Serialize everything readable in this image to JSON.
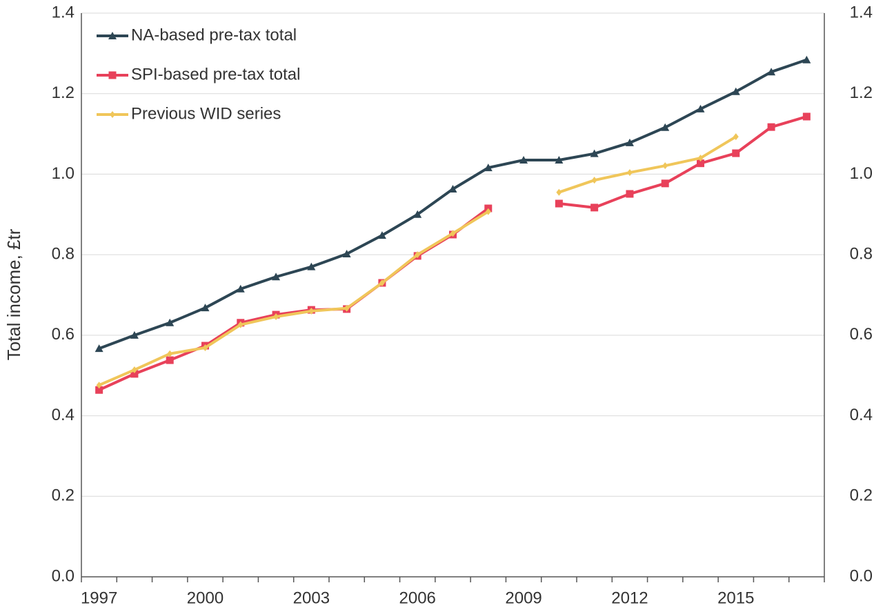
{
  "chart_data": {
    "type": "line",
    "y_label": "Total income, £tr",
    "categories": [
      "1997",
      null,
      null,
      "2000",
      null,
      null,
      "2003",
      null,
      null,
      "2006",
      null,
      null,
      "2009",
      null,
      null,
      "2012",
      null,
      null,
      "2015",
      null,
      null
    ],
    "series": [
      {
        "name": "NA-based pre-tax total",
        "color": "#2d4654",
        "marker": "triangle",
        "values": [
          0.567,
          0.6,
          0.631,
          0.668,
          0.715,
          0.745,
          0.77,
          0.802,
          0.848,
          0.9,
          0.963,
          1.016,
          1.035,
          1.035,
          1.051,
          1.078,
          1.116,
          1.162,
          1.205,
          1.254,
          1.284
        ]
      },
      {
        "name": "SPI-based pre-tax total",
        "color": "#e8415a",
        "marker": "square",
        "values": [
          0.464,
          0.504,
          0.538,
          0.574,
          0.631,
          0.651,
          0.663,
          0.665,
          0.73,
          0.797,
          0.85,
          0.915,
          null,
          0.927,
          0.917,
          0.951,
          0.977,
          1.027,
          1.052,
          1.117,
          1.143
        ]
      },
      {
        "name": "Previous WID series",
        "color": "#f0c65a",
        "marker": "diamond",
        "values": [
          0.476,
          0.514,
          0.554,
          0.569,
          0.626,
          0.646,
          0.66,
          0.667,
          0.73,
          0.8,
          0.853,
          0.907,
          null,
          0.955,
          0.985,
          1.004,
          1.021,
          1.04,
          1.093,
          null,
          null
        ]
      }
    ],
    "ylim": [
      0,
      1.4
    ],
    "yticks": [
      {
        "value": 0,
        "label": "0.0"
      },
      0.2,
      0.4,
      0.6,
      0.8,
      {
        "value": 1,
        "label": "1.0"
      },
      1.2,
      1.4
    ],
    "y2lim": [
      0,
      1.4
    ],
    "y2ticks": [
      {
        "value": 0,
        "label": "0.0"
      },
      0.2,
      0.4,
      0.6,
      0.8,
      {
        "value": 1,
        "label": "1.0"
      },
      1.2,
      1.4
    ],
    "grid": true,
    "legend": "top-left"
  }
}
